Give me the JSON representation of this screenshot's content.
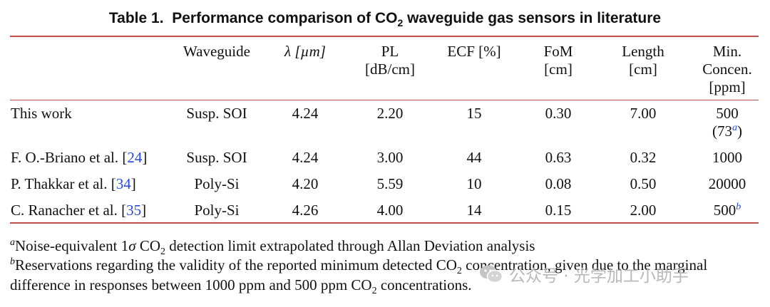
{
  "caption": {
    "label": "Table 1.",
    "title_pre": "Performance comparison of CO",
    "title_sub": "2",
    "title_post": " waveguide gas sensors in literature"
  },
  "table": {
    "headers": {
      "waveguide": "Waveguide",
      "lambda": "λ [µm]",
      "pl_line1": "PL",
      "pl_line2": "[dB/cm]",
      "ecf": "ECF [%]",
      "fom_line1": "FoM",
      "fom_line2": "[cm]",
      "length_line1": "Length",
      "length_line2": "[cm]",
      "minconc_line1": "Min.",
      "minconc_line2": "Concen.",
      "minconc_line3": "[ppm]"
    },
    "rows": [
      {
        "work": "This work",
        "ref": "",
        "waveguide": "Susp. SOI",
        "lambda": "4.24",
        "pl": "2.20",
        "ecf": "15",
        "fom": "0.30",
        "length": "7.00",
        "minconc": "500",
        "minconc_extra": "(73",
        "minconc_extra_note": "a",
        "minconc_extra_close": ")"
      },
      {
        "work": "F. O.-Briano et al.",
        "ref": "24",
        "waveguide": "Susp. SOI",
        "lambda": "4.24",
        "pl": "3.00",
        "ecf": "44",
        "fom": "0.63",
        "length": "0.32",
        "minconc": "1000"
      },
      {
        "work": "P. Thakkar et al.",
        "ref": "34",
        "waveguide": "Poly-Si",
        "lambda": "4.20",
        "pl": "5.59",
        "ecf": "10",
        "fom": "0.08",
        "length": "0.50",
        "minconc": "20000"
      },
      {
        "work": "C. Ranacher et al.",
        "ref": "35",
        "waveguide": "Poly-Si",
        "lambda": "4.26",
        "pl": "4.00",
        "ecf": "14",
        "fom": "0.15",
        "length": "2.00",
        "minconc": "500",
        "minconc_note": "b"
      }
    ]
  },
  "footnotes": {
    "a_mark": "a",
    "a_pre": "Noise-equivalent 1",
    "a_sigma": "σ",
    "a_mid": " CO",
    "a_sub": "2",
    "a_post": " detection limit extrapolated through Allan Deviation analysis",
    "b_mark": "b",
    "b_line1_pre": "Reservations regarding the validity of the reported minimum detected CO",
    "b_line1_sub": "2",
    "b_line1_post": " concentration, given due to the marginal",
    "b_line2_pre": "difference in responses between 1000 ppm and 500 ppm CO",
    "b_line2_sub": "2",
    "b_line2_post": " concentrations."
  },
  "watermark": {
    "icon": "wechat-icon",
    "text": "公众号 · 光学加工小助手"
  },
  "colors": {
    "rule": "#c0504d",
    "citation": "#2a4ad8",
    "watermark": "#b9b9b9"
  }
}
